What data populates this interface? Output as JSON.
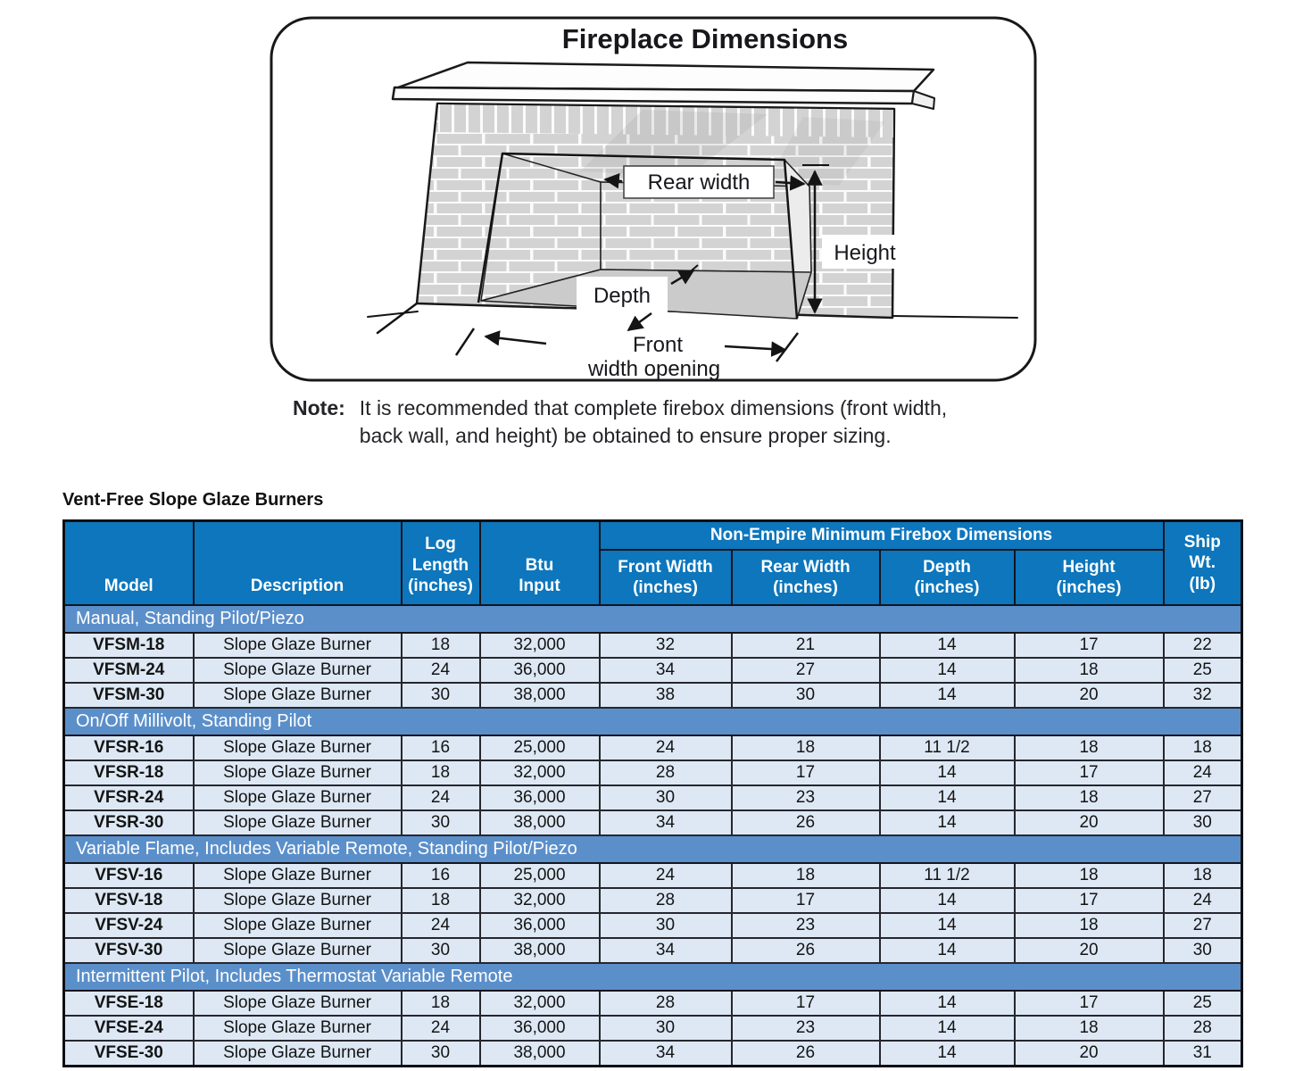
{
  "colors": {
    "header_blue": "#0d76bc",
    "band_blue": "#5b8fca",
    "row_blue": "#dde8f4"
  },
  "diagram": {
    "title": "Fireplace Dimensions",
    "labels": {
      "rear_width": "Rear width",
      "height": "Height",
      "depth": "Depth",
      "front_line1": "Front",
      "front_line2": "width opening"
    },
    "note": {
      "label": "Note:",
      "lines": [
        "It is recommended that complete firebox dimensions (front width,",
        "back wall, and height) be obtained to ensure proper sizing."
      ]
    }
  },
  "table": {
    "title": "Vent-Free Slope Glaze Burners",
    "group_header": "Non-Empire Minimum Firebox Dimensions",
    "columns": {
      "model": "Model",
      "description": "Description",
      "log_length": [
        "Log",
        "Length",
        "(inches)"
      ],
      "btu": [
        "Btu",
        "Input"
      ],
      "front_width": [
        "Front Width",
        "(inches)"
      ],
      "rear_width": [
        "Rear Width",
        "(inches)"
      ],
      "depth": [
        "Depth",
        "(inches)"
      ],
      "height": [
        "Height",
        "(inches)"
      ],
      "ship": [
        "Ship",
        "Wt.",
        "(lb)"
      ]
    },
    "sections": [
      {
        "label": "Manual, Standing Pilot/Piezo",
        "rows": [
          [
            "VFSM-18",
            "Slope Glaze Burner",
            "18",
            "32,000",
            "32",
            "21",
            "14",
            "17",
            "22"
          ],
          [
            "VFSM-24",
            "Slope Glaze Burner",
            "24",
            "36,000",
            "34",
            "27",
            "14",
            "18",
            "25"
          ],
          [
            "VFSM-30",
            "Slope Glaze Burner",
            "30",
            "38,000",
            "38",
            "30",
            "14",
            "20",
            "32"
          ]
        ]
      },
      {
        "label": "On/Off Millivolt, Standing Pilot",
        "rows": [
          [
            "VFSR-16",
            "Slope Glaze Burner",
            "16",
            "25,000",
            "24",
            "18",
            "11 1/2",
            "18",
            "18"
          ],
          [
            "VFSR-18",
            "Slope Glaze Burner",
            "18",
            "32,000",
            "28",
            "17",
            "14",
            "17",
            "24"
          ],
          [
            "VFSR-24",
            "Slope Glaze Burner",
            "24",
            "36,000",
            "30",
            "23",
            "14",
            "18",
            "27"
          ],
          [
            "VFSR-30",
            "Slope Glaze Burner",
            "30",
            "38,000",
            "34",
            "26",
            "14",
            "20",
            "30"
          ]
        ]
      },
      {
        "label": "Variable Flame, Includes Variable Remote, Standing Pilot/Piezo",
        "rows": [
          [
            "VFSV-16",
            "Slope Glaze Burner",
            "16",
            "25,000",
            "24",
            "18",
            "11 1/2",
            "18",
            "18"
          ],
          [
            "VFSV-18",
            "Slope Glaze Burner",
            "18",
            "32,000",
            "28",
            "17",
            "14",
            "17",
            "24"
          ],
          [
            "VFSV-24",
            "Slope Glaze Burner",
            "24",
            "36,000",
            "30",
            "23",
            "14",
            "18",
            "27"
          ],
          [
            "VFSV-30",
            "Slope Glaze Burner",
            "30",
            "38,000",
            "34",
            "26",
            "14",
            "20",
            "30"
          ]
        ]
      },
      {
        "label": "Intermittent Pilot, Includes Thermostat Variable Remote",
        "rows": [
          [
            "VFSE-18",
            "Slope Glaze Burner",
            "18",
            "32,000",
            "28",
            "17",
            "14",
            "17",
            "25"
          ],
          [
            "VFSE-24",
            "Slope Glaze Burner",
            "24",
            "36,000",
            "30",
            "23",
            "14",
            "18",
            "28"
          ],
          [
            "VFSE-30",
            "Slope Glaze Burner",
            "30",
            "38,000",
            "34",
            "26",
            "14",
            "20",
            "31"
          ]
        ]
      }
    ]
  }
}
